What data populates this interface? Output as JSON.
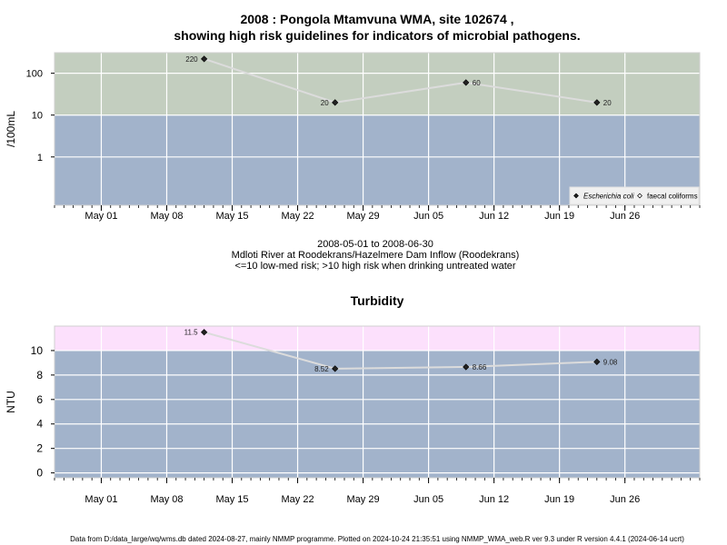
{
  "chart_data": [
    {
      "type": "line",
      "title_line1": "2008 : Pongola Mtamvuna WMA, site 102674 ,",
      "title_line2": "showing high risk guidelines for indicators of microbial pathogens.",
      "ylabel": "/100mL",
      "y_scale": "log",
      "ylim": [
        0.07,
        310
      ],
      "y_ticks": [
        1,
        10,
        100
      ],
      "y_tick_labels": [
        "1",
        "10",
        "100"
      ],
      "xlim": [
        "2008-04-26",
        "2008-07-04"
      ],
      "x_ticks": [
        "2008-05-01",
        "2008-05-08",
        "2008-05-15",
        "2008-05-22",
        "2008-05-29",
        "2008-06-05",
        "2008-06-12",
        "2008-06-19",
        "2008-06-26"
      ],
      "x_tick_labels": [
        "May 01",
        "May 08",
        "May 15",
        "May 22",
        "May 29",
        "Jun 05",
        "Jun 12",
        "Jun 19",
        "Jun 26"
      ],
      "grid": true,
      "bands": [
        {
          "from": 0.07,
          "to": 10,
          "color": "#a2b3cb",
          "meaning": "low-med risk"
        },
        {
          "from": 10,
          "to": 310,
          "color": "#c3cebf",
          "meaning": "high risk"
        }
      ],
      "series": [
        {
          "name": "Escherichia coli",
          "marker": "filled-diamond",
          "x": [
            "2008-05-12",
            "2008-05-26",
            "2008-06-09",
            "2008-06-23"
          ],
          "y": [
            220,
            20,
            60,
            20
          ],
          "labels": [
            "220",
            "20",
            "60",
            "20"
          ],
          "label_side": [
            "left",
            "left",
            "right",
            "right"
          ]
        }
      ],
      "legend": {
        "placement": "bottom-right",
        "entries": [
          {
            "label": "Escherichia coli",
            "marker": "filled-diamond",
            "italic": true
          },
          {
            "label": "faecal coliforms",
            "marker": "open-diamond",
            "italic": false
          }
        ]
      },
      "caption_lines": [
        "2008-05-01 to 2008-06-30",
        "Mdloti River at Roodekrans/Hazelmere Dam Inflow (Roodekrans)",
        "<=10 low-med risk; >10 high risk when drinking untreated water"
      ]
    },
    {
      "type": "line",
      "title": "Turbidity",
      "ylabel": "NTU",
      "y_scale": "linear",
      "ylim": [
        -0.4,
        12
      ],
      "y_ticks": [
        0,
        2,
        4,
        6,
        8,
        10
      ],
      "y_tick_labels": [
        "0",
        "2",
        "4",
        "6",
        "8",
        "10"
      ],
      "xlim": [
        "2008-04-26",
        "2008-07-04"
      ],
      "x_ticks": [
        "2008-05-01",
        "2008-05-08",
        "2008-05-15",
        "2008-05-22",
        "2008-05-29",
        "2008-06-05",
        "2008-06-12",
        "2008-06-19",
        "2008-06-26"
      ],
      "x_tick_labels": [
        "May 01",
        "May 08",
        "May 15",
        "May 22",
        "May 29",
        "Jun 05",
        "Jun 12",
        "Jun 19",
        "Jun 26"
      ],
      "grid": true,
      "bands": [
        {
          "from": -0.4,
          "to": 10,
          "color": "#a2b3cb"
        },
        {
          "from": 10,
          "to": 12,
          "color": "#fce0fc"
        }
      ],
      "series": [
        {
          "marker": "filled-diamond",
          "x": [
            "2008-05-12",
            "2008-05-26",
            "2008-06-09",
            "2008-06-23"
          ],
          "y": [
            11.5,
            8.52,
            8.66,
            9.08
          ],
          "labels": [
            "11.5",
            "8.52",
            "8.66",
            "9.08"
          ],
          "label_side": [
            "left",
            "left",
            "right",
            "right"
          ]
        }
      ]
    }
  ],
  "footer": "Data from D:/data_large/wq/wms.db dated 2024-08-27, mainly NMMP programme. Plotted on 2024-10-24 21:35:51 using NMMP_WMA_web.R ver 9.3 under R version 4.4.1 (2024-06-14 ucrt)"
}
